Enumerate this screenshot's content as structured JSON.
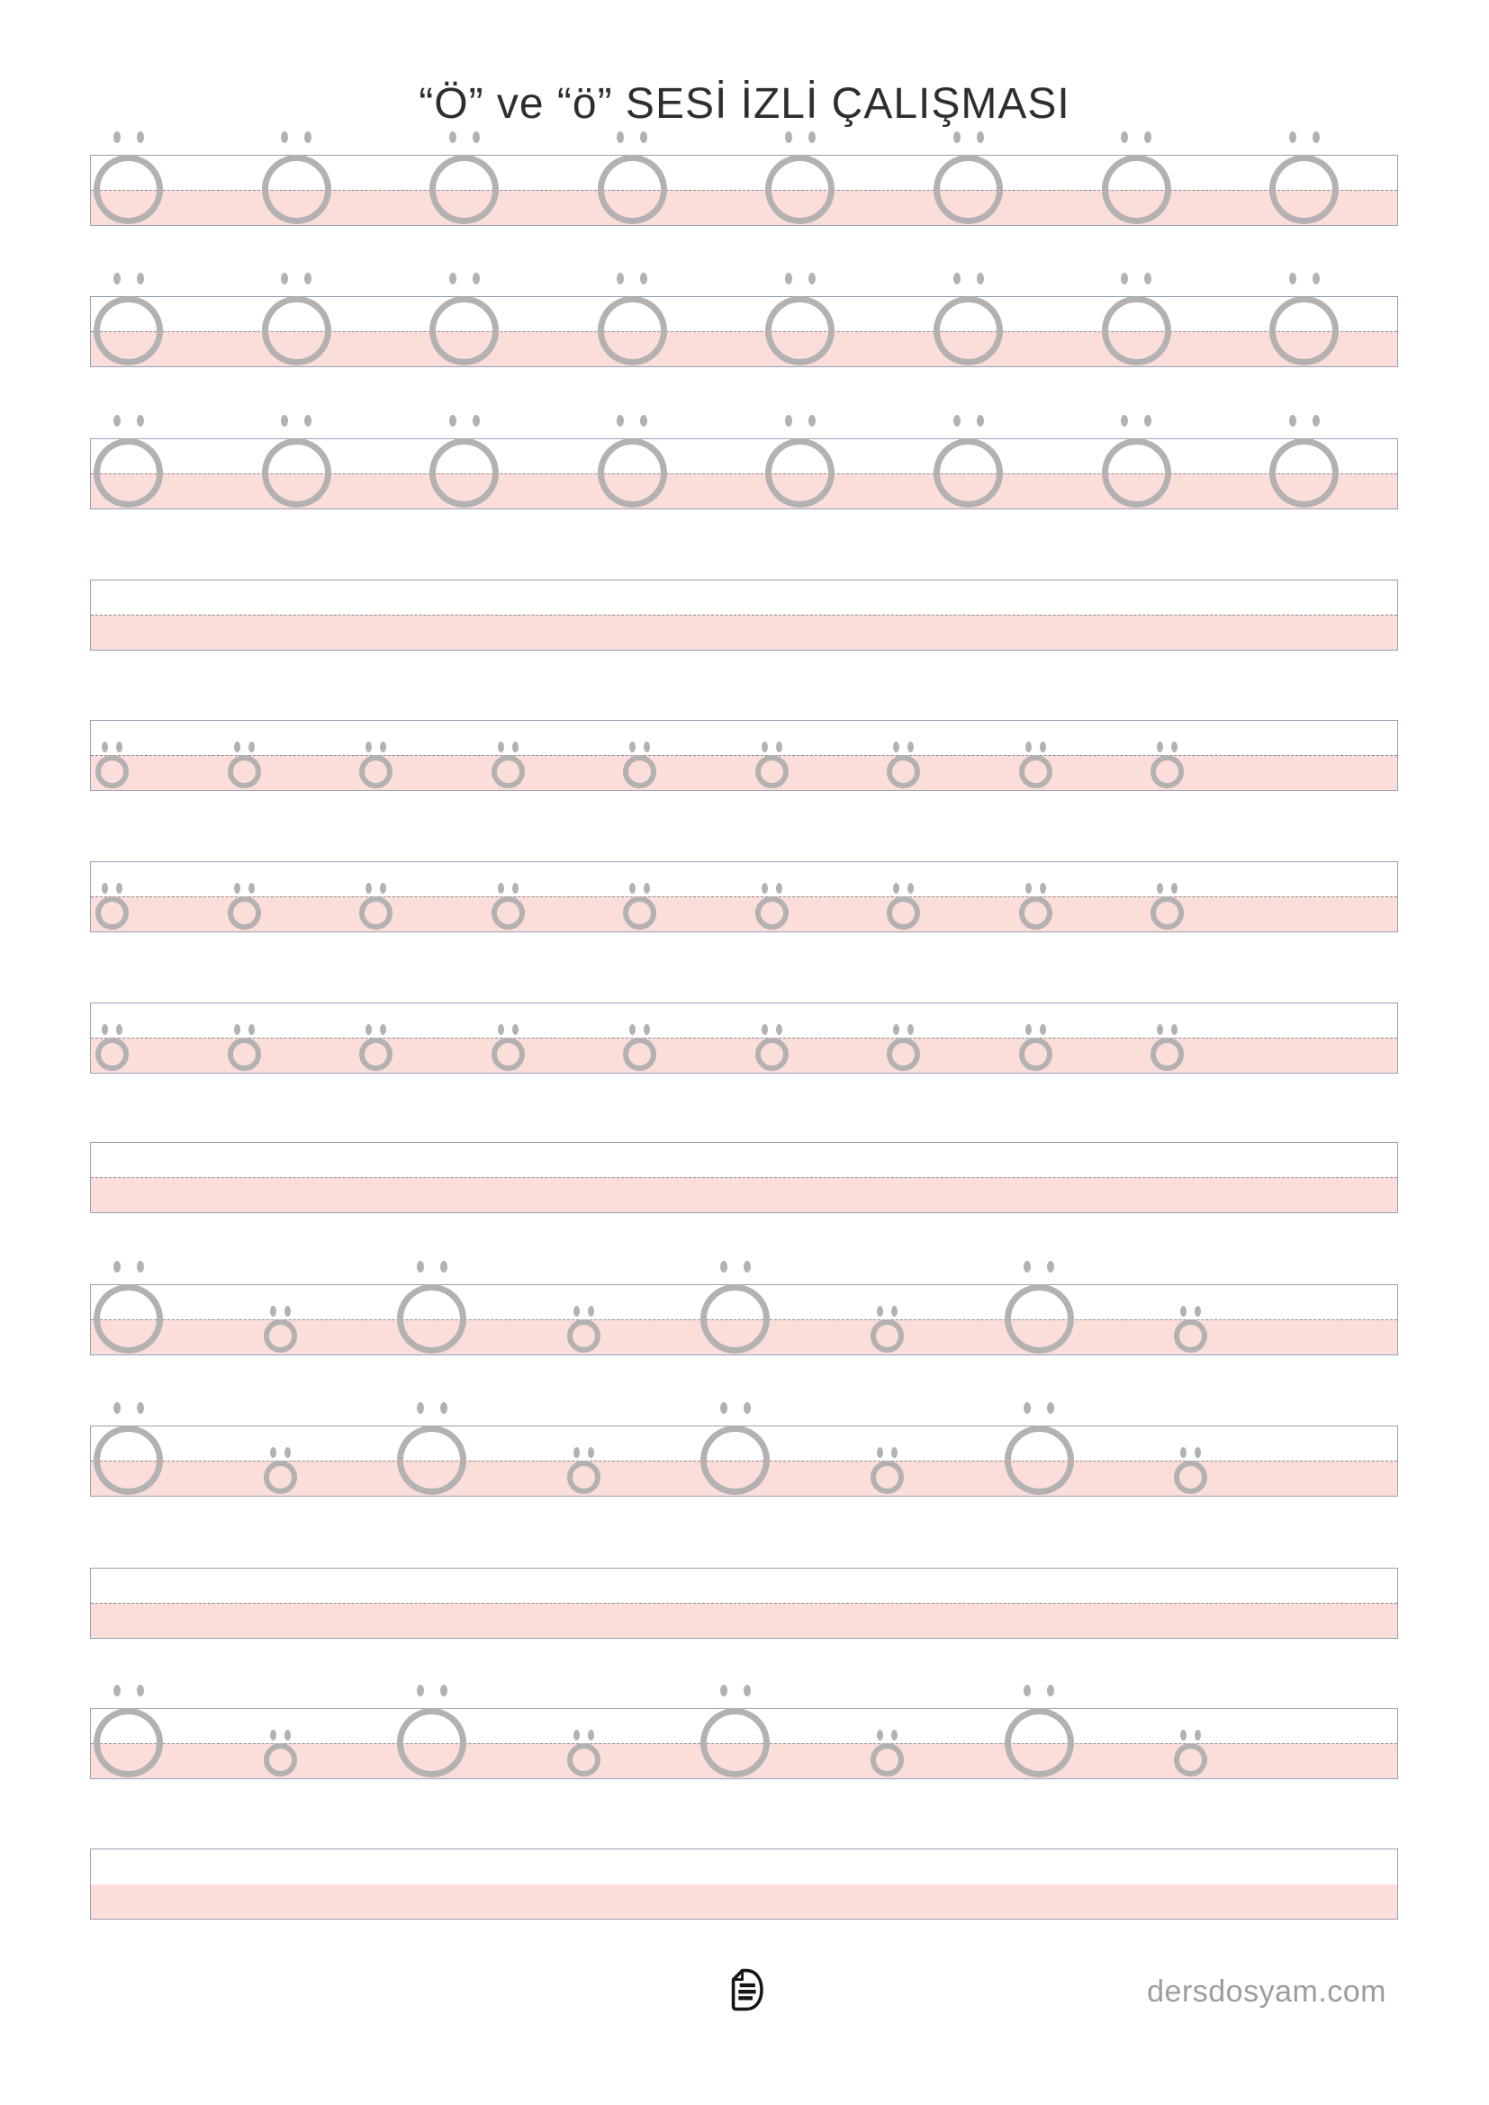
{
  "title": "“Ö” ve “ö” SESİ İZLİ ÇALIŞMASI",
  "worksheet": {
    "letter_upper": "Ö",
    "letter_lower": "ö",
    "rows": [
      {
        "type": "uppercase",
        "count": 8,
        "midline": true
      },
      {
        "type": "uppercase",
        "count": 8,
        "midline": true
      },
      {
        "type": "uppercase",
        "count": 8,
        "midline": true
      },
      {
        "type": "empty",
        "count": 0,
        "midline": true
      },
      {
        "type": "lowercase",
        "count": 9,
        "midline": true
      },
      {
        "type": "lowercase",
        "count": 9,
        "midline": true
      },
      {
        "type": "lowercase",
        "count": 9,
        "midline": true
      },
      {
        "type": "empty",
        "count": 0,
        "midline": true
      },
      {
        "type": "mixed",
        "pattern": [
          "upper",
          "lower",
          "upper",
          "lower",
          "upper",
          "lower",
          "upper",
          "lower"
        ],
        "midline": true
      },
      {
        "type": "mixed",
        "pattern": [
          "upper",
          "lower",
          "upper",
          "lower",
          "upper",
          "lower",
          "upper",
          "lower"
        ],
        "midline": true
      },
      {
        "type": "empty",
        "count": 0,
        "midline": true
      },
      {
        "type": "mixed",
        "pattern": [
          "upper",
          "lower",
          "upper",
          "lower",
          "upper",
          "lower",
          "upper",
          "lower"
        ],
        "midline": true
      },
      {
        "type": "empty",
        "count": 0,
        "midline": false
      }
    ]
  },
  "footer": {
    "website": "dersdosyam.com",
    "logo_icon": "document-d-logo"
  },
  "colors": {
    "pink": "#fbdeda",
    "band_border": "#99a0b8",
    "dashed_line": "#8c8c8c",
    "letter_gray": "#b3b1b1",
    "title_text": "#2e2e2e",
    "footer_text": "#9d9d9d",
    "logo_ink": "#161616"
  }
}
